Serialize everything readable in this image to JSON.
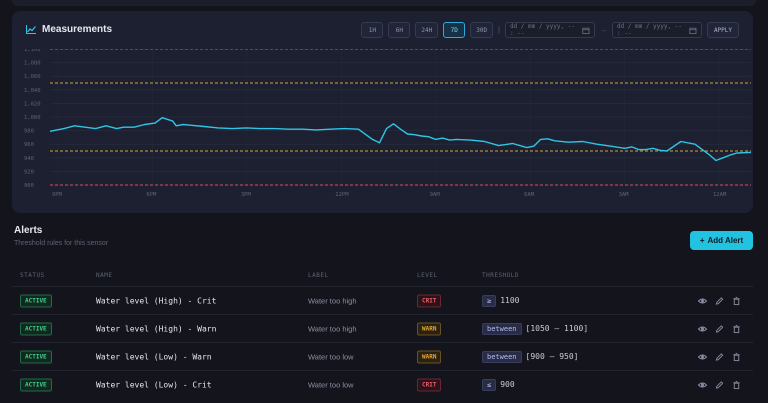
{
  "measurements": {
    "title": "Measurements",
    "icon": "line-chart-icon",
    "ranges": [
      "1H",
      "6H",
      "24H",
      "7D",
      "30D"
    ],
    "active_range": "7D",
    "date_from_placeholder": "dd / mm / yyyy, -- : --",
    "date_to_placeholder": "dd / mm / yyyy, -- : --",
    "date_separator": "→",
    "apply_label": "APPLY"
  },
  "chart_data": {
    "type": "line",
    "y_ticks": [
      "1,100",
      "1,080",
      "1,060",
      "1,040",
      "1,020",
      "1,000",
      "980",
      "960",
      "940",
      "920",
      "900"
    ],
    "ylim": [
      900,
      1100
    ],
    "x_ticks": [
      "9PM",
      "6PM",
      "3PM",
      "12PM",
      "9AM",
      "6AM",
      "3AM",
      "12AM"
    ],
    "grid": true,
    "thresholds": [
      {
        "value": 1100,
        "color": "#d64f5c"
      },
      {
        "value": 1050,
        "color": "#d6a13a"
      },
      {
        "value": 950,
        "color": "#d6a13a"
      },
      {
        "value": 900,
        "color": "#d64f5c"
      }
    ],
    "series": [
      {
        "color": "#2ec5e6",
        "x": [
          0,
          0.02,
          0.035,
          0.05,
          0.065,
          0.08,
          0.095,
          0.105,
          0.12,
          0.135,
          0.15,
          0.16,
          0.175,
          0.18,
          0.19,
          0.2,
          0.22,
          0.24,
          0.26,
          0.28,
          0.3,
          0.32,
          0.34,
          0.36,
          0.38,
          0.4,
          0.42,
          0.44,
          0.46,
          0.47,
          0.48,
          0.49,
          0.5,
          0.51,
          0.52,
          0.53,
          0.54,
          0.55,
          0.56,
          0.57,
          0.58,
          0.6,
          0.62,
          0.64,
          0.66,
          0.68,
          0.69,
          0.7,
          0.71,
          0.72,
          0.74,
          0.76,
          0.78,
          0.8,
          0.82,
          0.83,
          0.84,
          0.85,
          0.86,
          0.87,
          0.88,
          0.9,
          0.92,
          0.94,
          0.95,
          0.96,
          0.97,
          0.98,
          1.0
        ],
        "values": [
          979,
          983,
          987,
          985,
          983,
          987,
          983,
          985,
          985,
          989,
          991,
          999,
          994,
          987,
          989,
          988,
          986,
          984,
          983,
          984,
          983,
          983,
          982,
          982,
          981,
          982,
          983,
          982,
          967,
          962,
          983,
          990,
          982,
          975,
          974,
          972,
          971,
          967,
          969,
          966,
          967,
          966,
          964,
          958,
          961,
          955,
          957,
          967,
          968,
          965,
          963,
          964,
          960,
          957,
          954,
          956,
          952,
          952,
          954,
          951,
          950,
          964,
          960,
          945,
          936,
          940,
          944,
          947,
          948
        ]
      }
    ]
  },
  "alerts": {
    "title": "Alerts",
    "subtitle": "Threshold rules for this sensor",
    "add_label": "Add Alert",
    "columns": {
      "status": "STATUS",
      "name": "NAME",
      "label": "LABEL",
      "level": "LEVEL",
      "threshold": "THRESHOLD"
    },
    "rows": [
      {
        "status": "ACTIVE",
        "name": "Water level (High) - Crit",
        "label": "Water too high",
        "level": "CRIT",
        "op": "≥",
        "threshold": "1100"
      },
      {
        "status": "ACTIVE",
        "name": "Water level (High) - Warn",
        "label": "Water too high",
        "level": "WARN",
        "op": "between",
        "threshold": "[1050 – 1100]"
      },
      {
        "status": "ACTIVE",
        "name": "Water level (Low) - Warn",
        "label": "Water too low",
        "level": "WARN",
        "op": "between",
        "threshold": "[900 – 950]"
      },
      {
        "status": "ACTIVE",
        "name": "Water level (Low) - Crit",
        "label": "Water too low",
        "level": "CRIT",
        "op": "≤",
        "threshold": "900"
      }
    ]
  }
}
